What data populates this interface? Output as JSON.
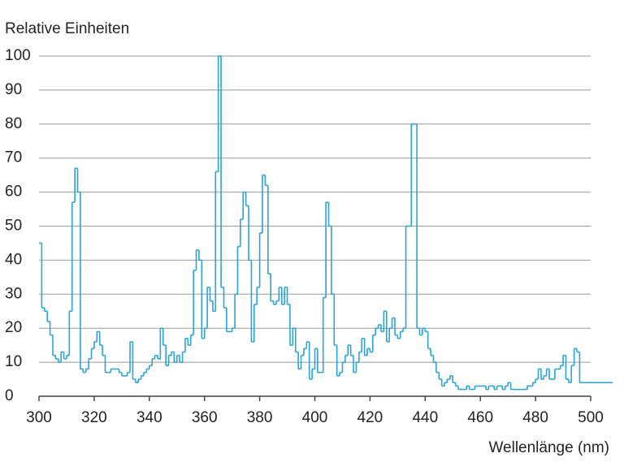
{
  "chart_data": {
    "type": "step",
    "ylabel": "Relative Einheiten",
    "xlabel": "Wellenlänge (nm)",
    "color": "#29a3dc",
    "grid": true,
    "xlim": [
      300,
      500
    ],
    "xticks": [
      300,
      320,
      340,
      360,
      380,
      400,
      420,
      440,
      460,
      480,
      500
    ],
    "ylim": [
      0,
      100
    ],
    "yticks": [
      0,
      10,
      20,
      30,
      40,
      50,
      60,
      70,
      80,
      90,
      100
    ],
    "x": [
      300,
      301,
      302,
      303,
      304,
      305,
      306,
      307,
      308,
      309,
      310,
      311,
      312,
      313,
      314,
      315,
      316,
      317,
      318,
      319,
      320,
      321,
      322,
      323,
      324,
      325,
      326,
      327,
      328,
      329,
      330,
      331,
      332,
      333,
      334,
      335,
      336,
      337,
      338,
      339,
      340,
      341,
      342,
      343,
      344,
      345,
      346,
      347,
      348,
      349,
      350,
      351,
      352,
      353,
      354,
      355,
      356,
      357,
      358,
      359,
      360,
      361,
      362,
      363,
      364,
      365,
      366,
      367,
      368,
      369,
      370,
      371,
      372,
      373,
      374,
      375,
      376,
      377,
      378,
      379,
      380,
      381,
      382,
      383,
      384,
      385,
      386,
      387,
      388,
      389,
      390,
      391,
      392,
      393,
      394,
      395,
      396,
      397,
      398,
      399,
      400,
      401,
      402,
      403,
      404,
      405,
      406,
      407,
      408,
      409,
      410,
      411,
      412,
      413,
      414,
      415,
      416,
      417,
      418,
      419,
      420,
      421,
      422,
      423,
      424,
      425,
      426,
      427,
      428,
      429,
      430,
      431,
      432,
      433,
      434,
      435,
      436,
      437,
      438,
      439,
      440,
      441,
      442,
      443,
      444,
      445,
      446,
      447,
      448,
      449,
      450,
      451,
      452,
      453,
      454,
      455,
      456,
      457,
      458,
      459,
      460,
      461,
      462,
      463,
      464,
      465,
      466,
      467,
      468,
      469,
      470,
      471,
      472,
      473,
      474,
      475,
      476,
      477,
      478,
      479,
      480,
      481,
      482,
      483,
      484,
      485,
      486,
      487,
      488,
      489,
      490,
      491,
      492,
      493,
      494,
      495,
      496,
      497,
      498,
      499,
      500,
      501,
      502,
      503,
      504,
      505,
      506,
      507
    ],
    "values": [
      45,
      26,
      25,
      22,
      18,
      12,
      11,
      10,
      13,
      11,
      12,
      25,
      57,
      67,
      60,
      8,
      7,
      8,
      11,
      14,
      16,
      19,
      15,
      12,
      7,
      7,
      8,
      8,
      8,
      7,
      6,
      6,
      7,
      16,
      5,
      4,
      5,
      6,
      7,
      8,
      9,
      11,
      12,
      11,
      20,
      15,
      9,
      12,
      13,
      10,
      12,
      10,
      13,
      17,
      15,
      18,
      37,
      43,
      40,
      17,
      20,
      32,
      28,
      25,
      66,
      100,
      32,
      26,
      19,
      19,
      20,
      30,
      44,
      52,
      60,
      56,
      40,
      16,
      27,
      32,
      48,
      65,
      62,
      36,
      28,
      27,
      28,
      32,
      27,
      32,
      27,
      15,
      20,
      13,
      8,
      12,
      14,
      16,
      5,
      8,
      14,
      7,
      7,
      29,
      57,
      50,
      30,
      15,
      6,
      7,
      10,
      12,
      15,
      12,
      7,
      10,
      13,
      17,
      12,
      14,
      13,
      18,
      20,
      21,
      19,
      25,
      16,
      20,
      23,
      18,
      17,
      19,
      20,
      50,
      50,
      80,
      80,
      20,
      18,
      20,
      19,
      14,
      12,
      10,
      7,
      5,
      3,
      4,
      5,
      6,
      4,
      3,
      2,
      2,
      2,
      3,
      2,
      2,
      3,
      3,
      3,
      3,
      2,
      3,
      3,
      2,
      3,
      3,
      2,
      3,
      4,
      2,
      2,
      2,
      2,
      2,
      2,
      3,
      3,
      4,
      5,
      8,
      5,
      6,
      8,
      5,
      5,
      8,
      8,
      9,
      12,
      5,
      4,
      9,
      14,
      13,
      4,
      4,
      4,
      4,
      4,
      4,
      4,
      4,
      4,
      4,
      4,
      4
    ]
  }
}
